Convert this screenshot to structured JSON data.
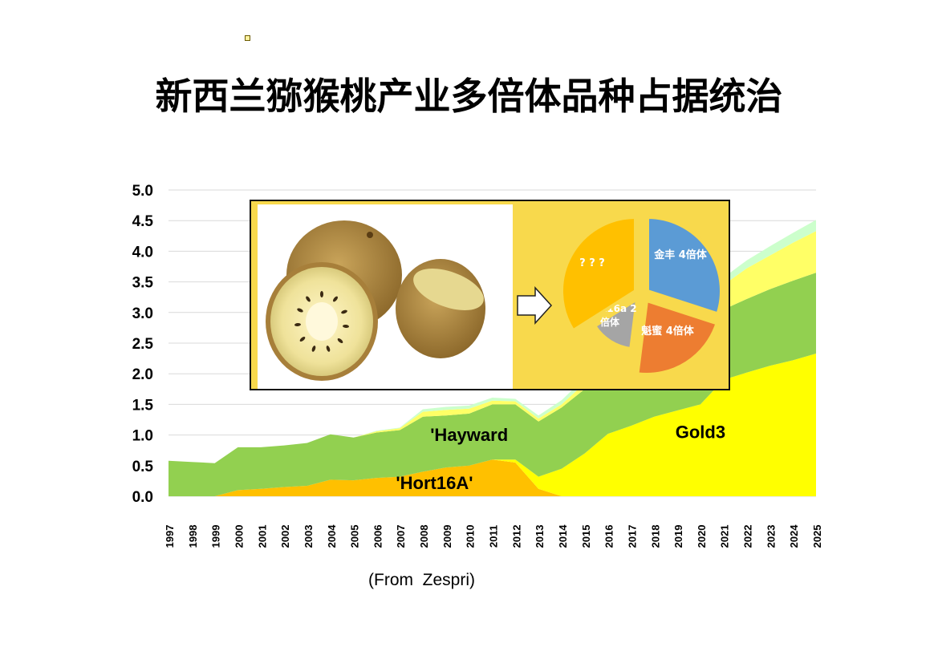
{
  "page": {
    "title": "新西兰猕猴桃产业多倍体品种占据统治",
    "source": "(From  Zespri)"
  },
  "colors": {
    "hayward": "#92d050",
    "hort16a": "#ffc000",
    "gold3": "#ffff00",
    "lightyellow": "#ffff66",
    "mint": "#ccffcc",
    "inset_bg": "#f8d94c"
  },
  "chart_data": {
    "type": "area",
    "title": "",
    "xlabel": "",
    "ylabel": "",
    "ylim": [
      0,
      5
    ],
    "yticks": [
      "0.0",
      "0.5",
      "1.0",
      "1.5",
      "2.0",
      "2.5",
      "3.0",
      "3.5",
      "4.0",
      "4.5",
      "5.0"
    ],
    "grid": true,
    "x": [
      "1997",
      "1998",
      "1999",
      "2000",
      "2001",
      "2002",
      "2003",
      "2004",
      "2005",
      "2006",
      "2007",
      "2008",
      "2009",
      "2010",
      "2011",
      "2012",
      "2013",
      "2014",
      "2015",
      "2016",
      "2017",
      "2018",
      "2019",
      "2020",
      "2021",
      "2022",
      "2023",
      "2024",
      "2025"
    ],
    "series": [
      {
        "name": "'Hort16A'",
        "color": "#ffc000",
        "values": [
          0,
          0,
          0,
          0.1,
          0.12,
          0.15,
          0.17,
          0.27,
          0.26,
          0.3,
          0.32,
          0.4,
          0.47,
          0.5,
          0.6,
          0.55,
          0.12,
          0,
          0,
          0,
          0,
          0,
          0,
          0,
          0,
          0,
          0,
          0,
          0
        ]
      },
      {
        "name": "Gold3",
        "color": "#ffff00",
        "values": [
          0,
          0,
          0,
          0,
          0,
          0,
          0,
          0,
          0,
          0,
          0,
          0,
          0,
          0,
          0,
          0.05,
          0.2,
          0.45,
          0.7,
          1.02,
          1.15,
          1.3,
          1.4,
          1.5,
          1.9,
          2.02,
          2.13,
          2.22,
          2.33
        ]
      },
      {
        "name": "'Hayward",
        "color": "#92d050",
        "values": [
          0.58,
          0.56,
          0.54,
          0.7,
          0.68,
          0.68,
          0.7,
          0.74,
          0.7,
          0.74,
          0.76,
          0.9,
          0.85,
          0.85,
          0.9,
          0.9,
          0.9,
          1.0,
          1.05,
          1.08,
          1.1,
          1.12,
          1.15,
          1.15,
          1.15,
          1.2,
          1.25,
          1.3,
          1.32
        ]
      },
      {
        "name": "",
        "color": "#ffff66",
        "values": [
          0,
          0,
          0,
          0,
          0,
          0,
          0,
          0,
          0,
          0.02,
          0.03,
          0.08,
          0.09,
          0.08,
          0.06,
          0.05,
          0.05,
          0.05,
          0.1,
          0.15,
          0.2,
          0.25,
          0.3,
          0.35,
          0.4,
          0.5,
          0.55,
          0.62,
          0.68
        ]
      },
      {
        "name": "",
        "color": "#ccffcc",
        "values": [
          0,
          0,
          0,
          0,
          0,
          0,
          0,
          0,
          0,
          0.01,
          0.01,
          0.04,
          0.05,
          0.05,
          0.05,
          0.04,
          0.05,
          0.07,
          0.08,
          0.09,
          0.1,
          0.1,
          0.1,
          0.12,
          0.12,
          0.13,
          0.15,
          0.16,
          0.18
        ]
      }
    ],
    "annotations": [
      {
        "text": "'Hayward",
        "x": "2010",
        "y": 0.9
      },
      {
        "text": "Gold3",
        "x": "2020",
        "y": 0.95
      },
      {
        "text": "'Hort16A'",
        "x": "2008.5",
        "y": 0.12
      }
    ]
  },
  "inset": {
    "arrow": "right-arrow",
    "pie": [
      {
        "label": "金丰 4倍体",
        "color": "#5b9bd5",
        "value": 30
      },
      {
        "label": "魁蜜 4倍体",
        "color": "#ed7d31",
        "value": 22
      },
      {
        "label": "Hort16a 2\n倍体",
        "color": "#a5a5a5",
        "value": 14
      },
      {
        "label": "? ? ?",
        "color": "#ffc000",
        "value": 34
      }
    ]
  }
}
